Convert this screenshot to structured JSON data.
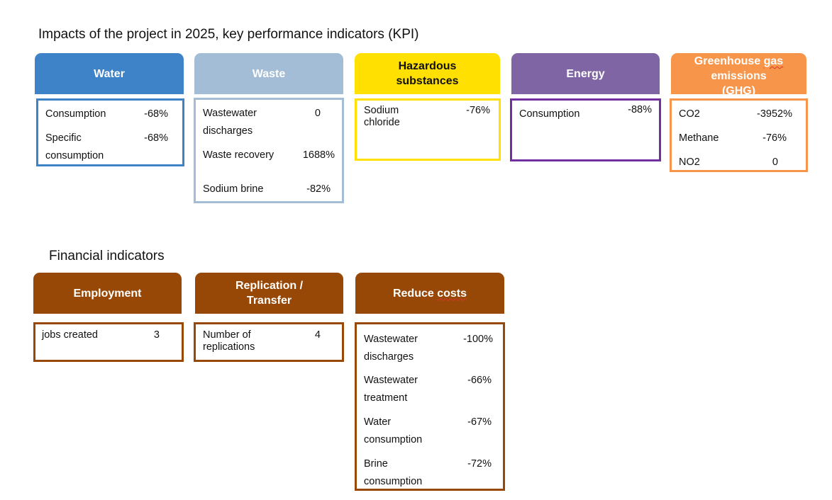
{
  "kpi": {
    "title": "Impacts of the project in 2025, key performance indicators (KPI)",
    "water": {
      "header": "Water",
      "color": "#3E82C7",
      "rows": [
        {
          "label": "Consumption",
          "value": "-68%"
        },
        {
          "label": "Specific consumption",
          "value": "-68%"
        }
      ]
    },
    "waste": {
      "header": "Waste",
      "color": "#A3BDD6",
      "rows": [
        {
          "label": "Wastewater discharges",
          "value": "0"
        },
        {
          "label": "Waste recovery",
          "value": "1688%"
        },
        {
          "label": "Sodium brine",
          "value": "-82%"
        }
      ]
    },
    "hazardous": {
      "header": "Hazardous substances",
      "color": "#FFE000",
      "rows": [
        {
          "label": "Sodium chloride",
          "value": "-76%"
        }
      ]
    },
    "energy": {
      "header": "Energy",
      "color": "#7F65A4",
      "border_color": "#7030A0",
      "rows": [
        {
          "label": "Consumption",
          "value": "-88%"
        }
      ]
    },
    "ghg": {
      "header_line1": "Greenhouse ",
      "header_squiggle": "gas",
      "header_line2": "emissions",
      "header_line3": "(GHG)",
      "color": "#F7964A",
      "rows": [
        {
          "label": "CO2",
          "value": "-3952%"
        },
        {
          "label": "Methane",
          "value": "-76%"
        },
        {
          "label": "NO2",
          "value": "0"
        }
      ]
    }
  },
  "financial": {
    "title": "Financial indicators",
    "color": "#974806",
    "employment": {
      "header": "Employment",
      "rows": [
        {
          "label": "jobs created",
          "value": "3"
        }
      ]
    },
    "replication": {
      "header": "Replication / Transfer",
      "rows": [
        {
          "label": "Number of replications",
          "value": "4"
        }
      ]
    },
    "reduce": {
      "header_plain": "Reduce ",
      "header_squiggle": "costs",
      "rows": [
        {
          "label": "Wastewater discharges",
          "value": "-100%"
        },
        {
          "label": "Wastewater treatment",
          "value": "-66%"
        },
        {
          "label": "Water consumption",
          "value": "-67%"
        },
        {
          "label": "Brine consumption",
          "value": "-72%"
        }
      ]
    }
  }
}
